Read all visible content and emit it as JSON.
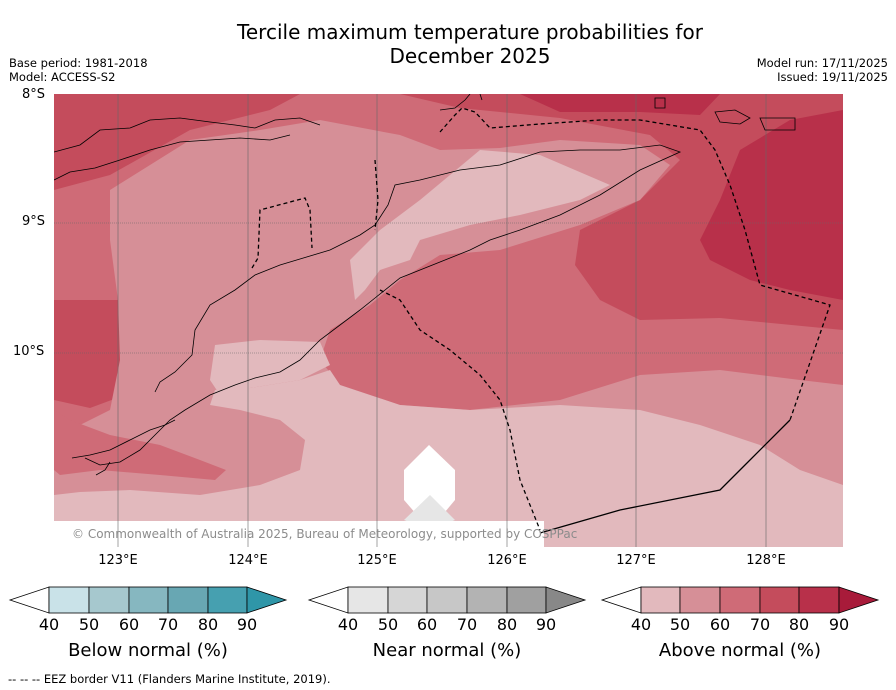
{
  "title": "Tercile maximum temperature probabilities for December 2025",
  "title_line1": "Tercile maximum temperature probabilities for",
  "title_line2": "December 2025",
  "base_period": "Base period: 1981-2018",
  "model": "Model: ACCESS-S2",
  "model_run": "Model run: 17/11/2025",
  "issued": "Issued: 19/11/2025",
  "copyright": "© Commonwealth of Australia 2025, Bureau of Meteorology, supported by COSPPac",
  "footer_legend": "--  --  -- EEZ border V11 (Flanders Marine Institute, 2019).",
  "lat_labels": [
    "8°S",
    "9°S",
    "10°S"
  ],
  "lon_labels": [
    "123°E",
    "124°E",
    "125°E",
    "126°E",
    "127°E",
    "128°E"
  ],
  "colorbars": [
    {
      "label": "Below normal (%)",
      "ticks": [
        "40",
        "50",
        "60",
        "70",
        "80",
        "90"
      ],
      "colors": [
        "#c9e2e8",
        "#a6c8ce",
        "#86b7c0",
        "#68a7b3",
        "#46a0b0"
      ],
      "extend_color": "#2f96a8"
    },
    {
      "label": "Near normal (%)",
      "ticks": [
        "40",
        "50",
        "60",
        "70",
        "80",
        "90"
      ],
      "colors": [
        "#e6e6e6",
        "#d6d6d6",
        "#c7c7c7",
        "#b3b3b3",
        "#a0a0a0"
      ],
      "extend_color": "#888888"
    },
    {
      "label": "Above normal (%)",
      "ticks": [
        "40",
        "50",
        "60",
        "70",
        "80",
        "90"
      ],
      "colors": [
        "#e2b9bd",
        "#d68f97",
        "#cf6b77",
        "#c44c5c",
        "#b8304a"
      ],
      "extend_color": "#a81b3a"
    }
  ],
  "map_colors": {
    "above_40": "#e2b9bd",
    "above_50": "#d68f97",
    "above_60": "#cf6b77",
    "above_70": "#c44c5c",
    "above_80": "#b8304a",
    "near_40": "#e6e6e6",
    "border": "#000000",
    "grid": "#555555"
  }
}
